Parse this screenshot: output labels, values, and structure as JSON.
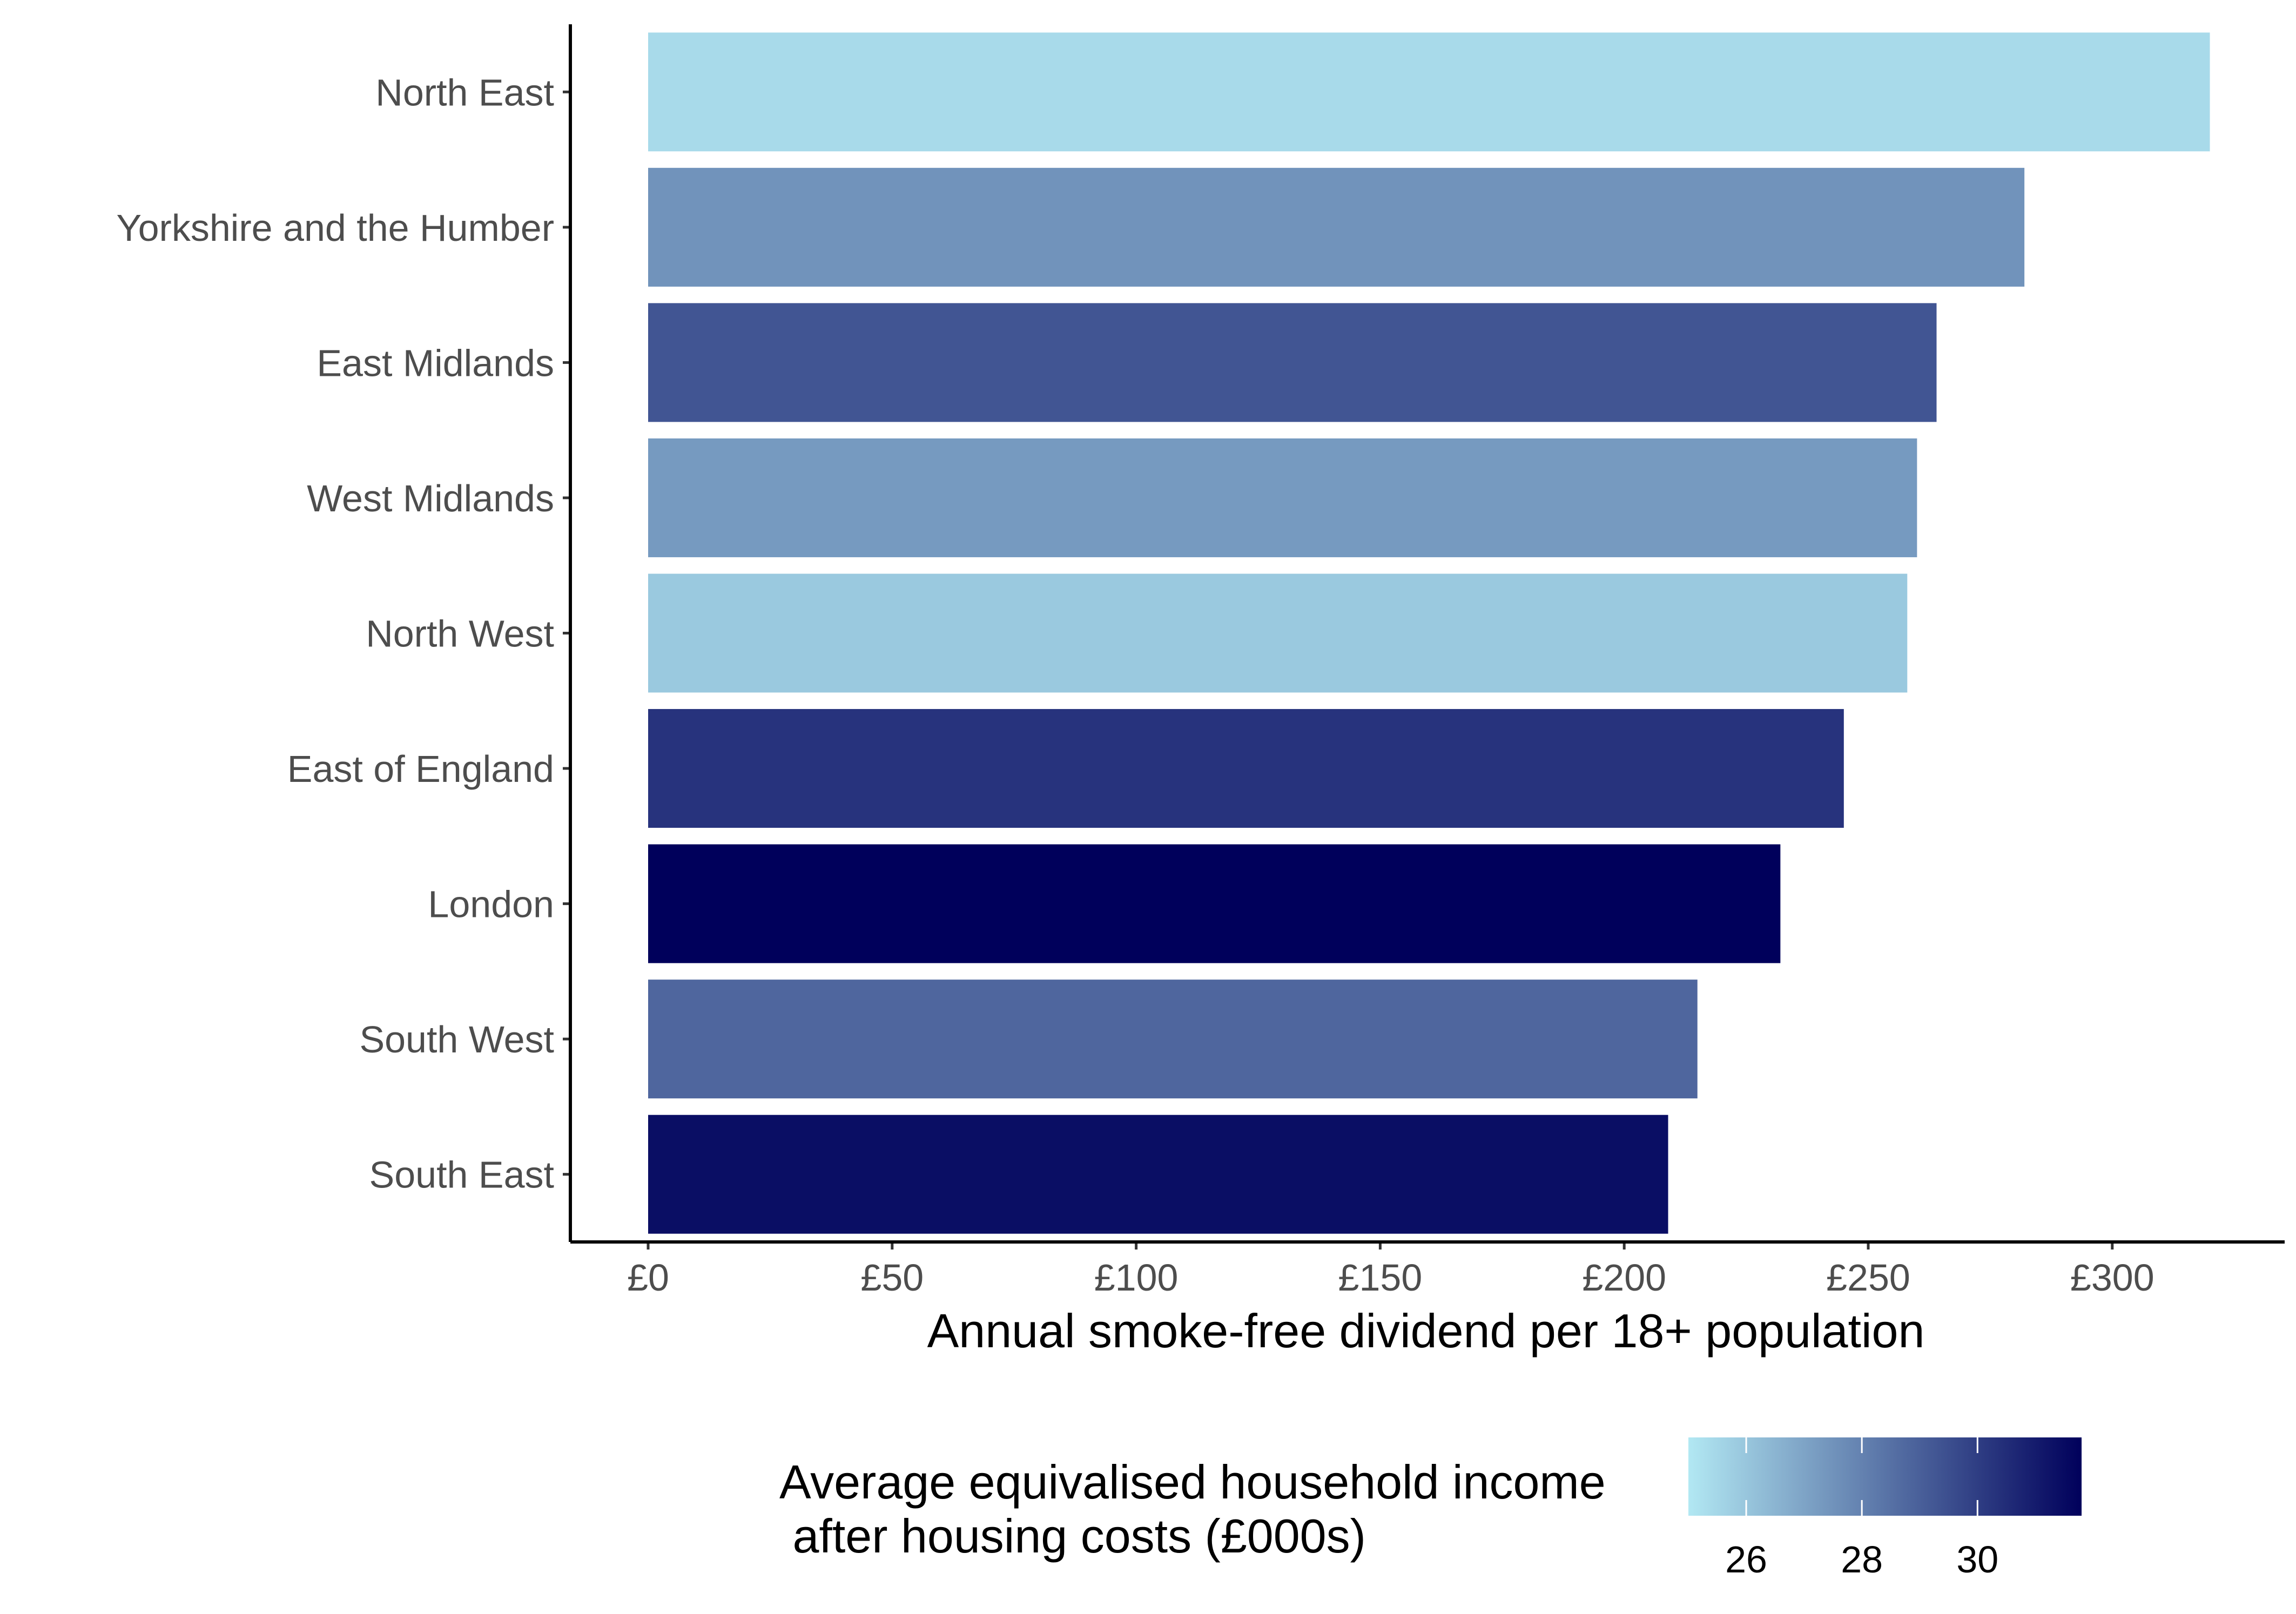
{
  "chart_data": {
    "type": "bar",
    "orientation": "horizontal",
    "categories": [
      "North East",
      "Yorkshire and the Humber",
      "East Midlands",
      "West Midlands",
      "North West",
      "East of England",
      "London",
      "South West",
      "South East"
    ],
    "values": [
      320,
      282,
      264,
      260,
      258,
      245,
      232,
      215,
      209
    ],
    "income": [
      25.4,
      27.5,
      29.3,
      27.3,
      25.9,
      30.3,
      31.8,
      28.8,
      31.4
    ],
    "xlabel": "Annual smoke-free dividend per 18+ population",
    "ylabel": "",
    "xlim": [
      -16,
      335
    ],
    "x_ticks": [
      0,
      50,
      100,
      150,
      200,
      250,
      300
    ],
    "x_tick_labels": [
      "£0",
      "£50",
      "£100",
      "£150",
      "£200",
      "£250",
      "£300"
    ],
    "grid": false,
    "legend": {
      "position": "bottom",
      "title_line1": "Average equivalised household income",
      "title_line2": " after housing costs (£000s)",
      "scale_min": 25.0,
      "scale_max": 31.8,
      "ticks": [
        26,
        28,
        30
      ],
      "tick_labels": [
        "26",
        "28",
        "30"
      ],
      "low_color": "#b2e8f3",
      "high_color": "#00005b"
    },
    "colors": {
      "axis": "#000000",
      "label": "#4d4d4d"
    }
  }
}
